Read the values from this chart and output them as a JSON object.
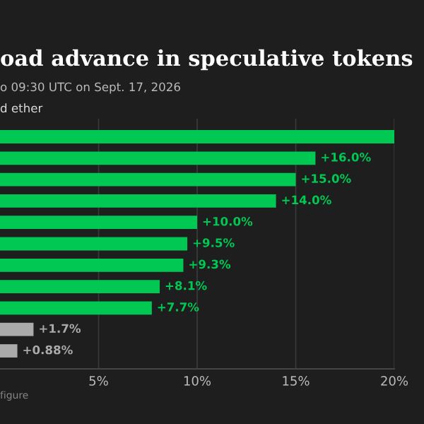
{
  "chart_data": {
    "type": "bar",
    "orientation": "horizontal",
    "title": "oad advance in speculative tokens",
    "subtitle": "o 09:30 UTC on Sept. 17, 2026",
    "annotations": [
      "d ether",
      "figure"
    ],
    "categories": [
      null,
      null,
      null,
      null,
      null,
      null,
      null,
      null,
      null,
      null,
      null
    ],
    "values": [
      20,
      16.0,
      15.0,
      14.0,
      10.0,
      9.5,
      9.3,
      8.1,
      7.7,
      1.7,
      0.88
    ],
    "colors": [
      "#00c853",
      "#00c853",
      "#00c853",
      "#00c853",
      "#00c853",
      "#00c853",
      "#00c853",
      "#00c853",
      "#00c853",
      "#aaaaaa",
      "#aaaaaa"
    ],
    "value_labels": [
      null,
      "+16.0%",
      "+15.0%",
      "+14.0%",
      "+10.0%",
      "+9.5%",
      "+9.3%",
      "+8.1%",
      "+7.7%",
      "+1.7%",
      "+0.88%"
    ],
    "xlim": [
      0,
      20
    ],
    "xticks": [
      {
        "value": 5,
        "label": "5%"
      },
      {
        "value": 10,
        "label": "10%"
      },
      {
        "value": 15,
        "label": "15%"
      },
      {
        "value": 20,
        "label": "20%"
      }
    ],
    "grid": "x",
    "legend": false
  }
}
